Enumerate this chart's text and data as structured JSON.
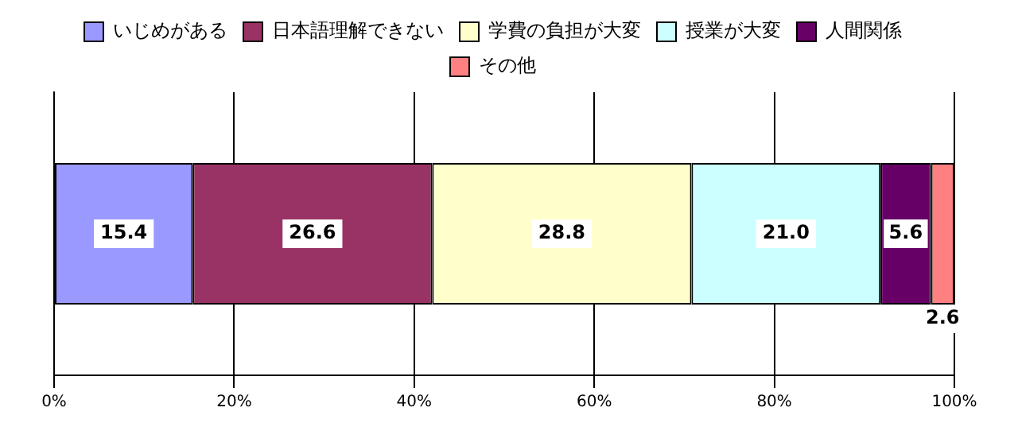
{
  "chart_data": {
    "type": "bar",
    "orientation": "horizontal",
    "stacked": true,
    "categories": [
      null
    ],
    "series": [
      {
        "name": "いじめがある",
        "color": "#9999ff",
        "values": [
          15.4
        ],
        "value_labels": [
          "15.4"
        ]
      },
      {
        "name": "日本語理解できない",
        "color": "#993366",
        "values": [
          26.6
        ],
        "value_labels": [
          "26.6"
        ]
      },
      {
        "name": "学費の負担が大変",
        "color": "#ffffcc",
        "values": [
          28.8
        ],
        "value_labels": [
          "28.8"
        ]
      },
      {
        "name": "授業が大変",
        "color": "#ccffff",
        "values": [
          21.0
        ],
        "value_labels": [
          "21.0"
        ]
      },
      {
        "name": "人間関係",
        "color": "#660066",
        "values": [
          5.6
        ],
        "value_labels": [
          "5.6"
        ]
      },
      {
        "name": "その他",
        "color": "#ff8080",
        "values": [
          2.6
        ],
        "value_labels": [
          "2.6"
        ]
      }
    ],
    "xlim": [
      0,
      100
    ],
    "xticks": [
      {
        "value": 0,
        "label": "0%"
      },
      {
        "value": 20,
        "label": "20%"
      },
      {
        "value": 40,
        "label": "40%"
      },
      {
        "value": 60,
        "label": "60%"
      },
      {
        "value": 80,
        "label": "80%"
      },
      {
        "value": 100,
        "label": "100%"
      }
    ],
    "grid": "x",
    "legend": "top"
  }
}
